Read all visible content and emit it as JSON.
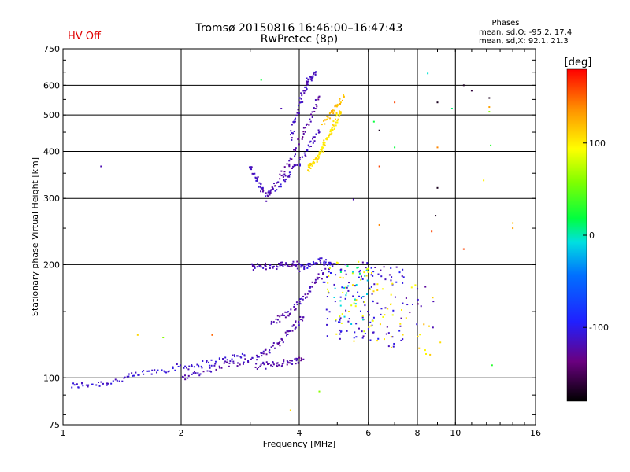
{
  "header": {
    "title_line1": "Tromsø 20150816 16:46:00–16:47:43",
    "title_line2": "RwPretec (8p)",
    "status": "HV Off",
    "status_color": "#e00000"
  },
  "stats": {
    "heading": "Phases",
    "line_o": "mean, sd,O: -95.2, 17.4",
    "line_x": "mean, sd,X:  92.1, 21.3"
  },
  "colorbar": {
    "label": "[deg]",
    "ticks": [
      "100",
      "0",
      "-100"
    ],
    "tick_values": [
      100,
      0,
      -100
    ],
    "range": [
      -180,
      180
    ]
  },
  "chart_data": {
    "type": "scatter",
    "xlabel": "Frequency [MHz]",
    "ylabel": "Stationary phase Virtual Height [km]",
    "x_scale": "log",
    "y_scale": "log",
    "xlim": [
      1,
      16
    ],
    "ylim": [
      75,
      750
    ],
    "grid": true,
    "x_ticks": [
      1,
      2,
      4,
      6,
      8,
      10,
      16
    ],
    "x_tick_labels": [
      "1",
      "2",
      "4",
      "6",
      "8",
      "10",
      "16"
    ],
    "y_ticks": [
      75,
      100,
      200,
      300,
      400,
      500,
      600,
      750
    ],
    "y_tick_labels": [
      "75",
      "100",
      "200",
      "300",
      "400",
      "500",
      "600",
      "750"
    ],
    "color_quantity": "phase [deg]",
    "traces": [
      {
        "x": [
          1.05,
          1.15,
          1.3,
          1.45,
          1.6,
          1.8,
          2.0,
          2.2,
          2.4,
          2.7,
          2.9
        ],
        "y": [
          95,
          96,
          97,
          100,
          103,
          105,
          107,
          108,
          110,
          113,
          115
        ],
        "phase": -110
      },
      {
        "x": [
          2.0,
          2.2,
          2.5,
          2.8,
          3.1,
          3.3,
          3.5,
          3.7,
          3.9,
          4.1
        ],
        "y": [
          100,
          103,
          107,
          110,
          113,
          117,
          122,
          130,
          138,
          145
        ],
        "phase": -120
      },
      {
        "x": [
          3.1,
          3.3,
          3.5,
          3.7,
          3.9,
          4.1
        ],
        "y": [
          107,
          108,
          109,
          110,
          111,
          112
        ],
        "phase": -125
      },
      {
        "x": [
          3.4,
          3.6,
          3.8,
          4.0,
          4.2,
          4.4,
          4.6
        ],
        "y": [
          140,
          145,
          150,
          158,
          168,
          180,
          190
        ],
        "phase": -120
      },
      {
        "x": [
          3.0,
          3.2,
          3.4,
          3.6,
          3.8,
          4.0
        ],
        "y": [
          197,
          198,
          198,
          199,
          200,
          201
        ],
        "phase": -120
      },
      {
        "x": [
          4.0,
          4.2,
          4.4,
          4.6,
          4.8
        ],
        "y": [
          195,
          198,
          202,
          205,
          200
        ],
        "phase": -110
      },
      {
        "x": [
          3.0,
          3.1,
          3.2,
          3.3,
          3.5,
          3.7,
          3.9,
          4.1,
          4.3,
          4.5
        ],
        "y": [
          370,
          340,
          320,
          310,
          320,
          340,
          360,
          390,
          420,
          450
        ],
        "phase": -115
      },
      {
        "x": [
          3.3,
          3.5,
          3.7,
          3.9,
          4.1,
          4.3,
          4.5
        ],
        "y": [
          300,
          330,
          360,
          400,
          450,
          500,
          560
        ],
        "phase": -125
      },
      {
        "x": [
          3.8,
          3.9,
          4.0,
          4.1,
          4.2,
          4.3,
          4.4
        ],
        "y": [
          430,
          480,
          530,
          580,
          610,
          630,
          640
        ],
        "phase": -115
      },
      {
        "x": [
          4.2,
          4.3,
          4.4,
          4.5,
          4.6,
          4.7,
          4.8,
          4.9,
          5.0,
          5.1
        ],
        "y": [
          360,
          370,
          380,
          395,
          410,
          430,
          450,
          470,
          490,
          510
        ],
        "phase": 105
      },
      {
        "x": [
          4.6,
          4.8,
          5.0,
          5.2
        ],
        "y": [
          480,
          500,
          530,
          560
        ],
        "phase": 120
      }
    ],
    "sparse_points": [
      {
        "x": 1.25,
        "y": 365,
        "phase": -120
      },
      {
        "x": 1.55,
        "y": 130,
        "phase": 110
      },
      {
        "x": 1.8,
        "y": 128,
        "phase": 60
      },
      {
        "x": 2.4,
        "y": 130,
        "phase": 150
      },
      {
        "x": 3.2,
        "y": 620,
        "phase": 20
      },
      {
        "x": 3.6,
        "y": 520,
        "phase": -120
      },
      {
        "x": 3.8,
        "y": 82,
        "phase": 110
      },
      {
        "x": 4.5,
        "y": 92,
        "phase": 60
      },
      {
        "x": 5.5,
        "y": 298,
        "phase": -120
      },
      {
        "x": 6.2,
        "y": 480,
        "phase": 20
      },
      {
        "x": 6.4,
        "y": 455,
        "phase": -170
      },
      {
        "x": 6.4,
        "y": 365,
        "phase": 160
      },
      {
        "x": 6.4,
        "y": 255,
        "phase": 140
      },
      {
        "x": 7.0,
        "y": 410,
        "phase": 20
      },
      {
        "x": 7.0,
        "y": 540,
        "phase": 160
      },
      {
        "x": 8.5,
        "y": 645,
        "phase": -5
      },
      {
        "x": 8.7,
        "y": 245,
        "phase": 160
      },
      {
        "x": 8.9,
        "y": 270,
        "phase": -170
      },
      {
        "x": 9.0,
        "y": 320,
        "phase": -170
      },
      {
        "x": 9.0,
        "y": 540,
        "phase": -170
      },
      {
        "x": 9.0,
        "y": 410,
        "phase": 140
      },
      {
        "x": 9.8,
        "y": 520,
        "phase": 10
      },
      {
        "x": 10.5,
        "y": 600,
        "phase": -170
      },
      {
        "x": 10.5,
        "y": 220,
        "phase": 160
      },
      {
        "x": 11.0,
        "y": 580,
        "phase": -160
      },
      {
        "x": 11.8,
        "y": 335,
        "phase": 100
      },
      {
        "x": 12.2,
        "y": 555,
        "phase": -170
      },
      {
        "x": 12.2,
        "y": 525,
        "phase": 130
      },
      {
        "x": 12.2,
        "y": 510,
        "phase": 60
      },
      {
        "x": 12.3,
        "y": 415,
        "phase": 30
      },
      {
        "x": 12.4,
        "y": 108,
        "phase": 30
      },
      {
        "x": 14.0,
        "y": 258,
        "phase": 120
      },
      {
        "x": 14.0,
        "y": 250,
        "phase": 130
      }
    ],
    "clusters": [
      {
        "x_range": [
          4.6,
          6.2
        ],
        "y_range": [
          125,
          205
        ],
        "phase": -110,
        "count": 90
      },
      {
        "x_range": [
          4.6,
          6.2
        ],
        "y_range": [
          125,
          205
        ],
        "phase": 95,
        "count": 40
      },
      {
        "x_range": [
          4.8,
          6.0
        ],
        "y_range": [
          135,
          200
        ],
        "phase": -5,
        "count": 25
      },
      {
        "x_range": [
          6.0,
          7.4
        ],
        "y_range": [
          120,
          200
        ],
        "phase": -110,
        "count": 45
      },
      {
        "x_range": [
          6.0,
          7.4
        ],
        "y_range": [
          118,
          180
        ],
        "phase": 100,
        "count": 20
      },
      {
        "x_range": [
          7.2,
          9.2
        ],
        "y_range": [
          115,
          180
        ],
        "phase": 110,
        "count": 14
      },
      {
        "x_range": [
          7.4,
          9.0
        ],
        "y_range": [
          135,
          175
        ],
        "phase": -120,
        "count": 12
      }
    ]
  }
}
